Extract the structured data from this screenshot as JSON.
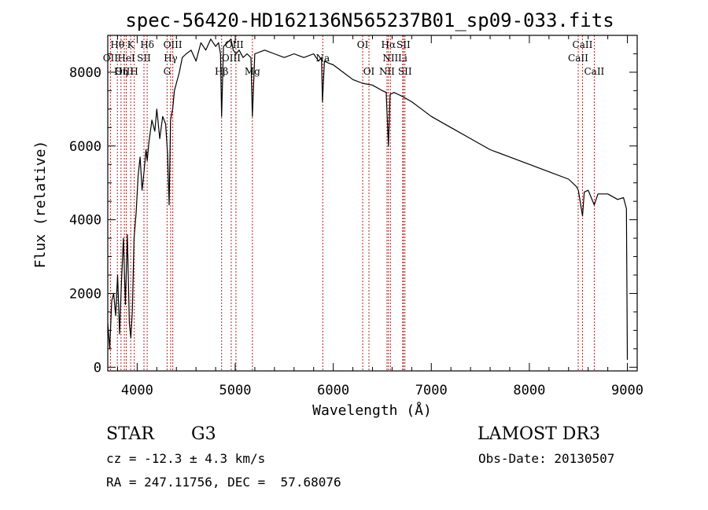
{
  "chart_data": {
    "type": "line",
    "title": "spec-56420-HD162136N565237B01_sp09-033.fits",
    "xlabel": "Wavelength (Å)",
    "ylabel": "Flux (relative)",
    "xlim": [
      3700,
      9100
    ],
    "ylim": [
      -100,
      9000
    ],
    "xticks": [
      4000,
      5000,
      6000,
      7000,
      8000,
      9000
    ],
    "yticks": [
      0,
      2000,
      4000,
      6000,
      8000
    ],
    "xtick_labels": [
      "4000",
      "5000",
      "6000",
      "7000",
      "8000",
      "9000"
    ],
    "ytick_labels": [
      "0",
      "2000",
      "4000",
      "6000",
      "8000"
    ],
    "series": [
      {
        "name": "flux",
        "x": [
          3700,
          3720,
          3740,
          3760,
          3780,
          3800,
          3820,
          3840,
          3860,
          3880,
          3900,
          3920,
          3935,
          3950,
          3968,
          3990,
          4010,
          4030,
          4050,
          4070,
          4090,
          4102,
          4120,
          4150,
          4180,
          4200,
          4230,
          4260,
          4290,
          4310,
          4326,
          4340,
          4362,
          4380,
          4400,
          4430,
          4460,
          4500,
          4550,
          4600,
          4650,
          4700,
          4750,
          4800,
          4830,
          4850,
          4861,
          4880,
          4920,
          4957,
          4980,
          5007,
          5040,
          5080,
          5120,
          5160,
          5175,
          5200,
          5300,
          5400,
          5500,
          5600,
          5700,
          5800,
          5850,
          5880,
          5890,
          5910,
          5950,
          6000,
          6100,
          6200,
          6300,
          6400,
          6500,
          6540,
          6563,
          6580,
          6620,
          6700,
          6800,
          6900,
          7000,
          7200,
          7400,
          7600,
          7800,
          8000,
          8200,
          8400,
          8480,
          8500,
          8542,
          8560,
          8600,
          8662,
          8700,
          8800,
          8900,
          8960,
          8990,
          9000
        ],
        "y": [
          1200,
          500,
          1800,
          2000,
          1400,
          2500,
          900,
          2300,
          3500,
          1700,
          3600,
          1200,
          800,
          1500,
          3500,
          4200,
          5200,
          5700,
          4800,
          5300,
          5900,
          5600,
          6100,
          6700,
          6400,
          7000,
          6200,
          6800,
          6600,
          5800,
          4400,
          6700,
          7000,
          7500,
          7700,
          8000,
          8400,
          8500,
          8600,
          8300,
          8800,
          8600,
          8900,
          8700,
          8800,
          8500,
          6800,
          8700,
          8800,
          8900,
          8600,
          8500,
          8600,
          8400,
          8500,
          8400,
          6800,
          8500,
          8600,
          8500,
          8400,
          8500,
          8400,
          8500,
          8300,
          8400,
          7200,
          8300,
          8250,
          8200,
          8000,
          7800,
          7700,
          7650,
          7500,
          7450,
          6000,
          7400,
          7450,
          7350,
          7200,
          7000,
          6800,
          6500,
          6200,
          5900,
          5700,
          5500,
          5300,
          5100,
          4900,
          4800,
          4100,
          4750,
          4800,
          4400,
          4700,
          4700,
          4550,
          4600,
          4300,
          200
        ]
      }
    ],
    "lines": [
      {
        "name": "H-theta",
        "x": 3798
      },
      {
        "name": "H-eta",
        "x": 3835
      },
      {
        "name": "OII",
        "x": 3727
      },
      {
        "name": "OIII-3869",
        "x": 3869
      },
      {
        "name": "HeI",
        "x": 3889
      },
      {
        "name": "K",
        "x": 3934
      },
      {
        "name": "H-epsilon",
        "x": 3970
      },
      {
        "name": "SII-4069",
        "x": 4069
      },
      {
        "name": "H-delta",
        "x": 4102
      },
      {
        "name": "OIII-4363",
        "x": 4363
      },
      {
        "name": "H-gamma",
        "x": 4341
      },
      {
        "name": "G",
        "x": 4305
      },
      {
        "name": "H-beta",
        "x": 4861
      },
      {
        "name": "OIII-4959",
        "x": 4959
      },
      {
        "name": "OIII-5007",
        "x": 5007
      },
      {
        "name": "Mg",
        "x": 5175
      },
      {
        "name": "Na",
        "x": 5893
      },
      {
        "name": "OI-6300",
        "x": 6300
      },
      {
        "name": "OI-6364",
        "x": 6364
      },
      {
        "name": "NII-6548",
        "x": 6548
      },
      {
        "name": "H-alpha",
        "x": 6563
      },
      {
        "name": "NII-6583",
        "x": 6583
      },
      {
        "name": "Li",
        "x": 6708
      },
      {
        "name": "SII-6716",
        "x": 6716
      },
      {
        "name": "SII-6731",
        "x": 6731
      },
      {
        "name": "CaII-8498",
        "x": 8498
      },
      {
        "name": "CaII-8542",
        "x": 8542
      },
      {
        "name": "CaII-8662",
        "x": 8662
      }
    ],
    "line_labels": [
      {
        "text": "Hθ",
        "x": 3798,
        "row": 0
      },
      {
        "text": "K",
        "x": 3934,
        "row": 0
      },
      {
        "text": "Hδ",
        "x": 4102,
        "row": 0
      },
      {
        "text": "OIII",
        "x": 4363,
        "row": 0
      },
      {
        "text": "OIII",
        "x": 4990,
        "row": 0
      },
      {
        "text": "OI",
        "x": 6300,
        "row": 0
      },
      {
        "text": "Hα",
        "x": 6563,
        "row": 0
      },
      {
        "text": "SII",
        "x": 6716,
        "row": 0
      },
      {
        "text": "CaII",
        "x": 8542,
        "row": 0
      },
      {
        "text": "OII",
        "x": 3727,
        "row": 1
      },
      {
        "text": "HeI",
        "x": 3889,
        "row": 1
      },
      {
        "text": "SII",
        "x": 4069,
        "row": 1
      },
      {
        "text": "Hγ",
        "x": 4341,
        "row": 1
      },
      {
        "text": "OIII",
        "x": 4959,
        "row": 1
      },
      {
        "text": "Na",
        "x": 5893,
        "row": 1
      },
      {
        "text": "NII",
        "x": 6583,
        "row": 1
      },
      {
        "text": "Li",
        "x": 6708,
        "row": 1
      },
      {
        "text": "CaII",
        "x": 8498,
        "row": 1
      },
      {
        "text": "OIII",
        "x": 3869,
        "row": 2
      },
      {
        "text": "Hη",
        "x": 3835,
        "row": 2
      },
      {
        "text": "H",
        "x": 3970,
        "row": 2
      },
      {
        "text": "G",
        "x": 4305,
        "row": 2
      },
      {
        "text": "Hβ",
        "x": 4861,
        "row": 2
      },
      {
        "text": "Mg",
        "x": 5175,
        "row": 2
      },
      {
        "text": "OI",
        "x": 6364,
        "row": 2
      },
      {
        "text": "NII",
        "x": 6548,
        "row": 2
      },
      {
        "text": "SII",
        "x": 6731,
        "row": 2
      },
      {
        "text": "CaII",
        "x": 8662,
        "row": 2
      }
    ],
    "colors": {
      "spectrum": "#000000",
      "lines": "#b22222",
      "axes": "#000000"
    }
  },
  "info": {
    "object_class": "STAR",
    "subclass": "G3",
    "survey": "LAMOST DR3",
    "redshift": "cz = -12.3 ± 4.3 km/s",
    "obs_date": "Obs-Date: 20130507",
    "coords": "RA = 247.11756, DEC =  57.68076"
  }
}
